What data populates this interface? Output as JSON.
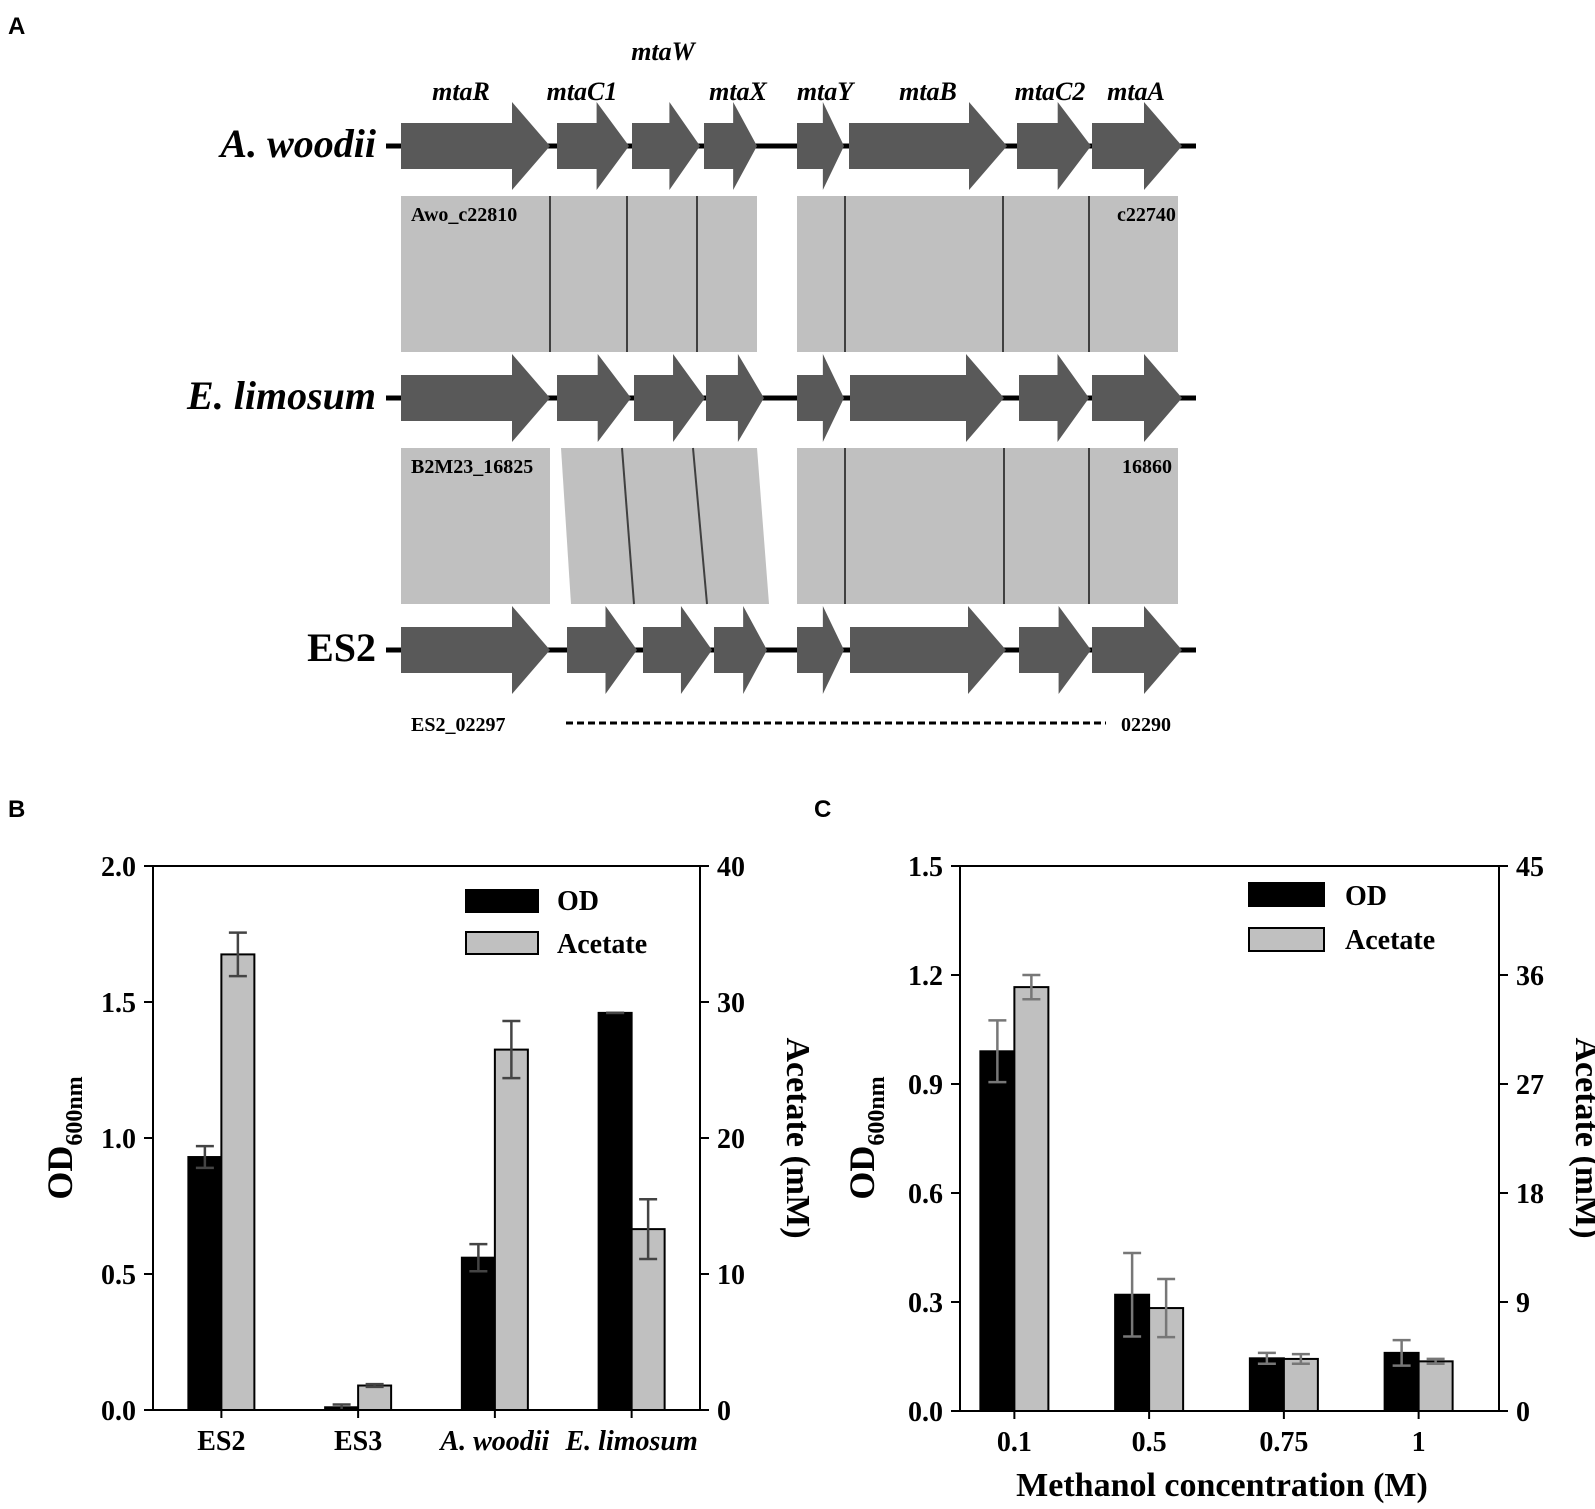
{
  "panels": {
    "A": {
      "letter": "A",
      "gene_names": [
        "mtaR",
        "mtaC1",
        "mtaW",
        "mtaX",
        "mtaY",
        "mtaB",
        "mtaC2",
        "mtaA"
      ],
      "organisms": [
        {
          "name": "A. woodii",
          "italic": true,
          "locus_start": "Awo_c22810",
          "locus_end": "c22740"
        },
        {
          "name": "E. limosum",
          "italic": true,
          "locus_start": "B2M23_16825",
          "locus_end": "16860"
        },
        {
          "name": "ES2",
          "italic": false,
          "locus_start": "ES2_02297",
          "locus_end": "02290"
        }
      ],
      "colors": {
        "gene": "#595959",
        "homology": "#c0c0c0",
        "backbone": "#000000"
      }
    },
    "B": {
      "letter": "B"
    },
    "C": {
      "letter": "C"
    }
  },
  "chart_data": [
    {
      "panel": "B",
      "type": "bar",
      "categories": [
        "ES2",
        "ES3",
        "A. woodii",
        "E. limosum"
      ],
      "categories_italic": [
        false,
        false,
        true,
        true
      ],
      "ylabel_left": {
        "main": "OD",
        "sub": "600nm"
      },
      "ylabel_right": "Acetate (mM)",
      "xlabel": "",
      "ylim_left": [
        0,
        2.0
      ],
      "ylim_right": [
        0,
        40
      ],
      "yticks_left": [
        "0.0",
        "0.5",
        "1.0",
        "1.5",
        "2.0"
      ],
      "yticks_right": [
        "0",
        "10",
        "20",
        "30",
        "40"
      ],
      "grid": false,
      "legend_position": "top-right",
      "series": [
        {
          "name": "OD",
          "axis": "left",
          "color": "#000000",
          "values": [
            0.93,
            0.01,
            0.56,
            1.46
          ],
          "errors": [
            0.04,
            0.01,
            0.05,
            0.0
          ]
        },
        {
          "name": "Acetate",
          "axis": "right",
          "color": "#c0c0c0",
          "values": [
            33.5,
            1.8,
            26.5,
            13.3
          ],
          "errors": [
            1.6,
            0.1,
            2.1,
            2.2
          ]
        }
      ]
    },
    {
      "panel": "C",
      "type": "bar",
      "categories": [
        "0.1",
        "0.5",
        "0.75",
        "1"
      ],
      "categories_italic": [
        false,
        false,
        false,
        false
      ],
      "ylabel_left": {
        "main": "OD",
        "sub": "600nm"
      },
      "ylabel_right": "Acetate (mM)",
      "xlabel": "Methanol concentration (M)",
      "ylim_left": [
        0,
        1.5
      ],
      "ylim_right": [
        0,
        45
      ],
      "yticks_left": [
        "0.0",
        "0.3",
        "0.6",
        "0.9",
        "1.2",
        "1.5"
      ],
      "yticks_right": [
        "0",
        "9",
        "18",
        "27",
        "36",
        "45"
      ],
      "grid": false,
      "legend_position": "top-right",
      "series": [
        {
          "name": "OD",
          "axis": "left",
          "color": "#000000",
          "values": [
            0.99,
            0.32,
            0.145,
            0.16
          ],
          "errors": [
            0.085,
            0.115,
            0.015,
            0.035
          ]
        },
        {
          "name": "Acetate",
          "axis": "right",
          "color": "#c0c0c0",
          "values": [
            35.0,
            8.5,
            4.3,
            4.1
          ],
          "errors": [
            1.0,
            2.4,
            0.4,
            0.2
          ]
        }
      ]
    }
  ]
}
